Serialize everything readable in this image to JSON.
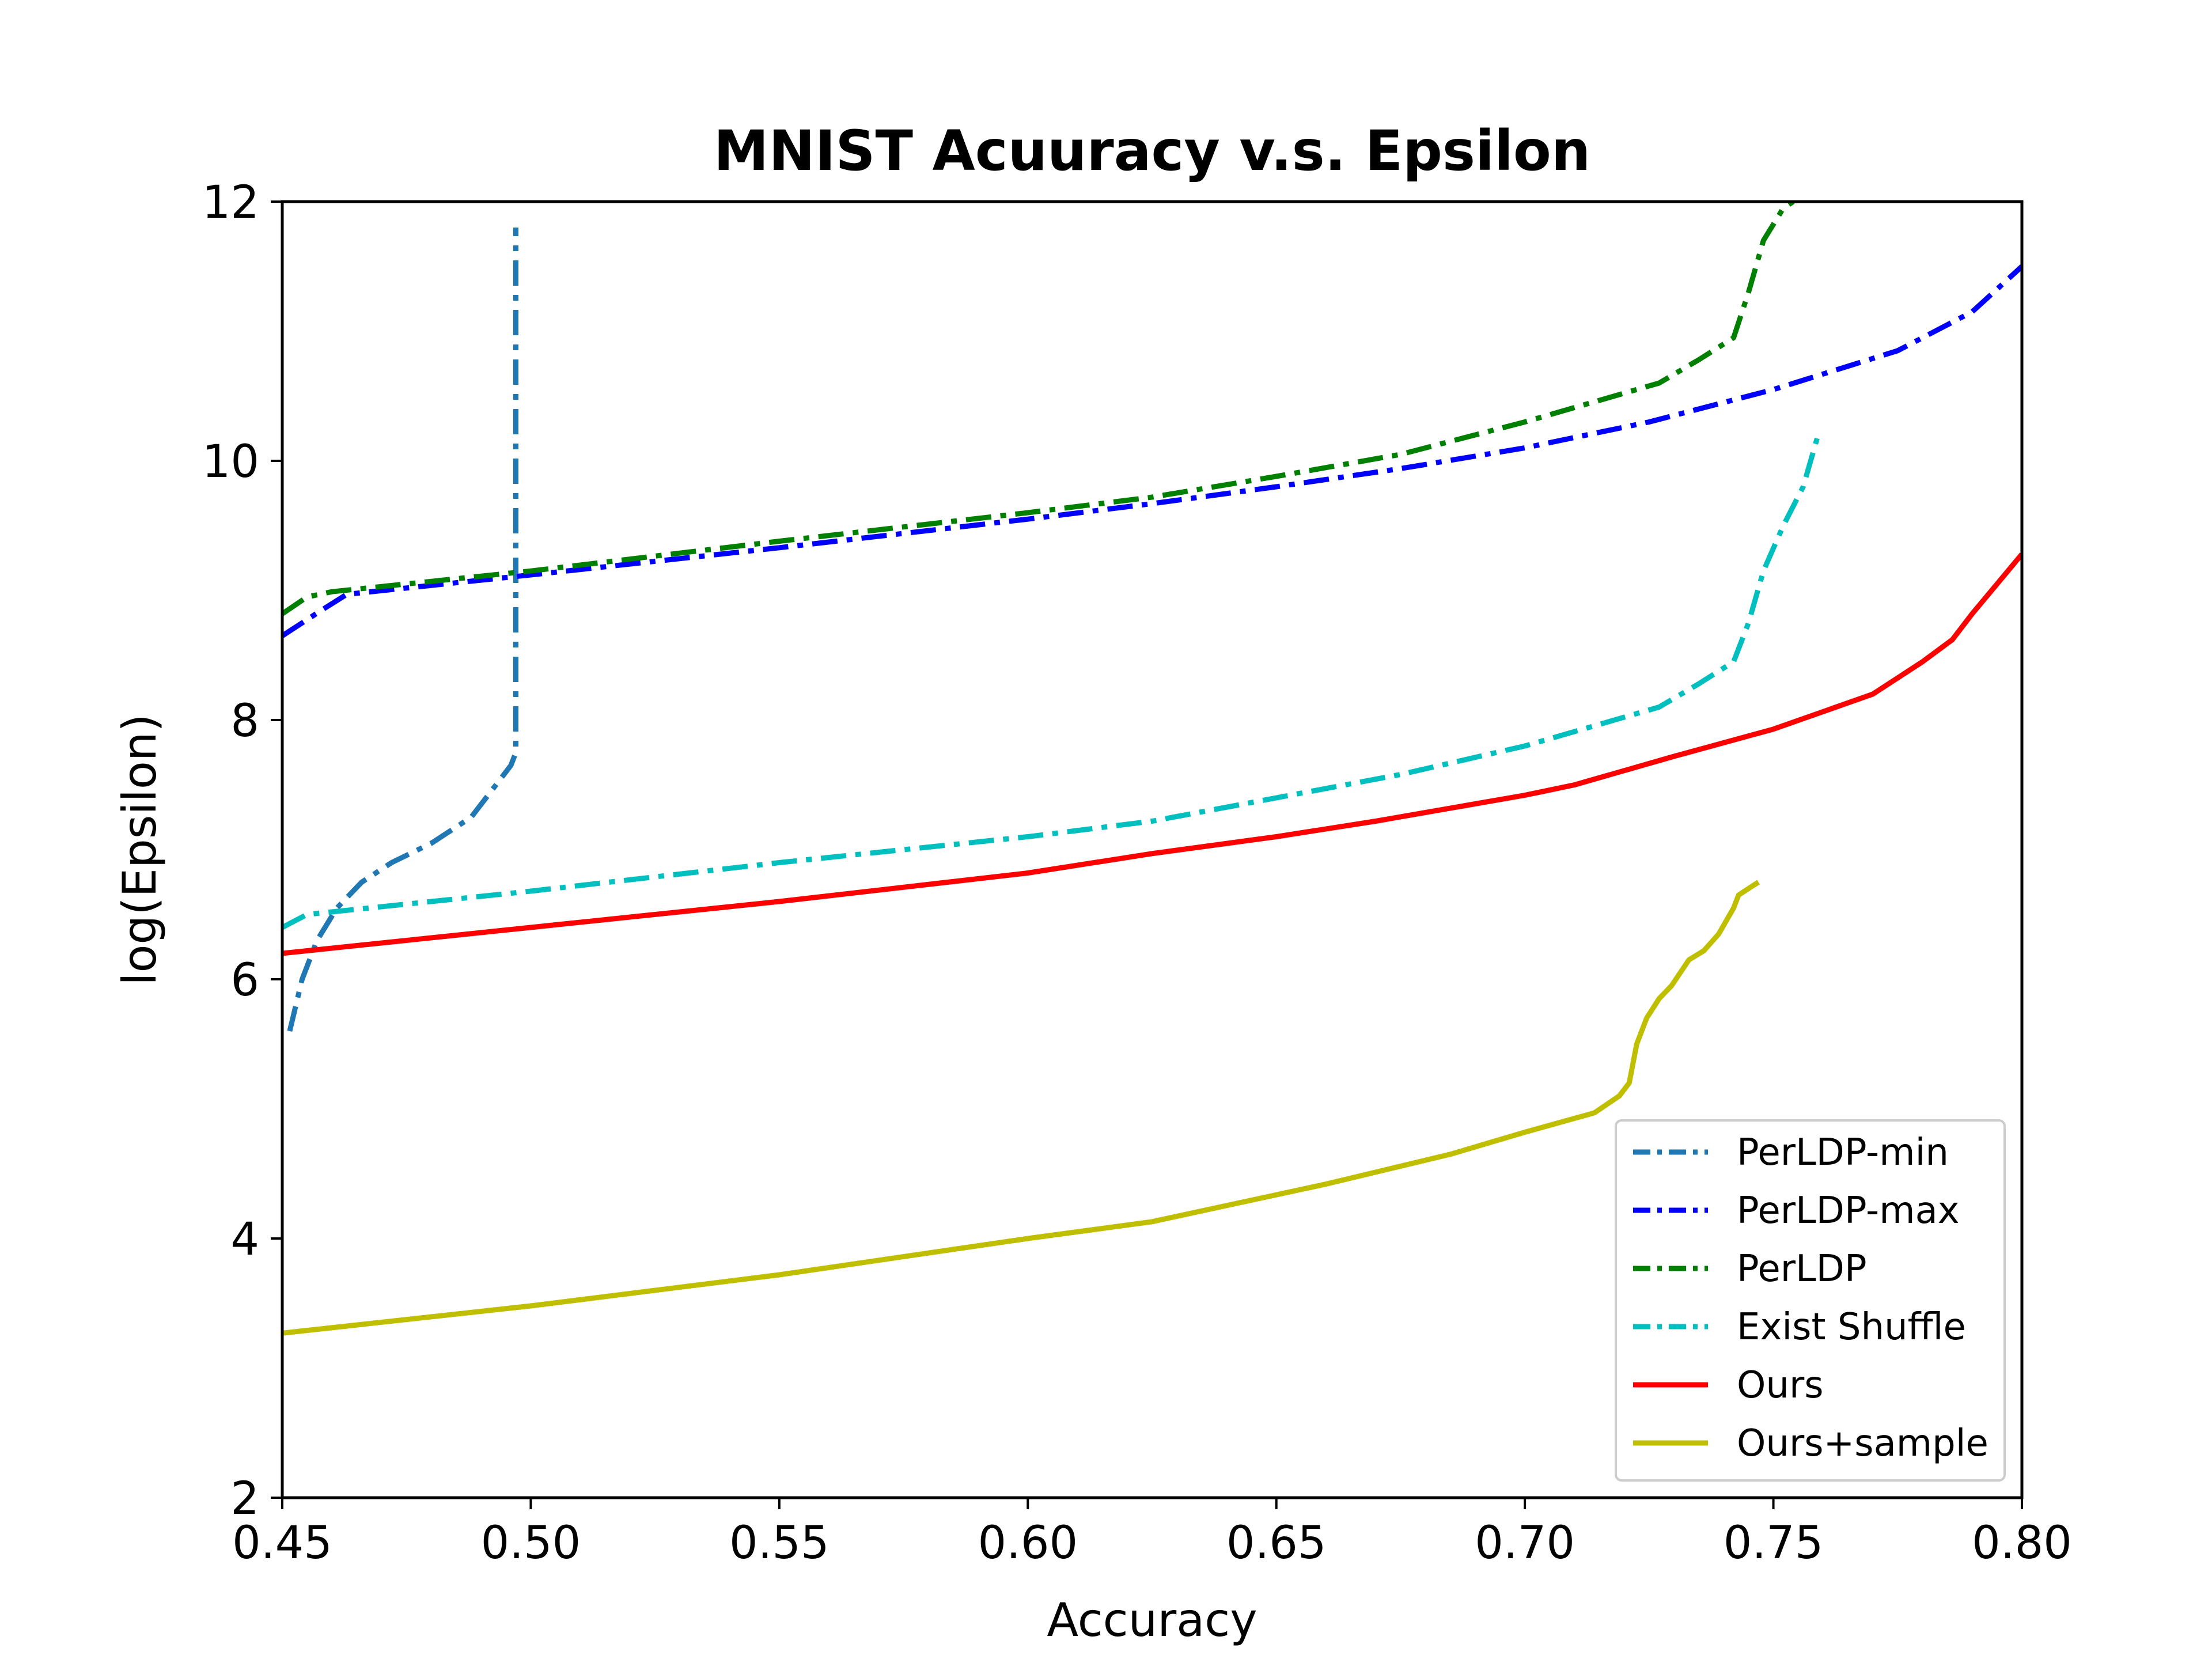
{
  "chart_data": {
    "type": "line",
    "title": "MNIST Acuuracy v.s. Epsilon",
    "xlabel": "Accuracy",
    "ylabel": "log(Epsilon)",
    "xlim": [
      0.45,
      0.8
    ],
    "ylim": [
      2,
      12
    ],
    "x_ticks": [
      "0.45",
      "0.50",
      "0.55",
      "0.60",
      "0.65",
      "0.70",
      "0.75",
      "0.80"
    ],
    "y_ticks": [
      "2",
      "4",
      "6",
      "8",
      "10",
      "12"
    ],
    "grid": false,
    "legend_position": "bottom-right",
    "series": [
      {
        "name": "PerLDP-min",
        "color": "#1f77b4",
        "style": "dashdot",
        "x": [
          0.4515,
          0.454,
          0.457,
          0.461,
          0.466,
          0.472,
          0.48,
          0.488,
          0.492,
          0.495,
          0.496,
          0.497,
          0.497,
          0.497,
          0.497
        ],
        "y": [
          5.6,
          6.0,
          6.3,
          6.55,
          6.75,
          6.9,
          7.05,
          7.25,
          7.45,
          7.6,
          7.65,
          7.75,
          8.0,
          10.0,
          11.8
        ]
      },
      {
        "name": "PerLDP-max",
        "color": "#0000ff",
        "style": "dashdot",
        "x": [
          0.45,
          0.458,
          0.463,
          0.5,
          0.55,
          0.6,
          0.625,
          0.65,
          0.675,
          0.7,
          0.725,
          0.75,
          0.775,
          0.79,
          0.8
        ],
        "y": [
          8.65,
          8.85,
          8.97,
          9.12,
          9.33,
          9.55,
          9.67,
          9.8,
          9.94,
          10.1,
          10.3,
          10.55,
          10.85,
          11.15,
          11.5
        ]
      },
      {
        "name": "PerLDP",
        "color": "#008000",
        "style": "dashdot",
        "x": [
          0.45,
          0.455,
          0.46,
          0.5,
          0.55,
          0.6,
          0.625,
          0.65,
          0.675,
          0.7,
          0.727,
          0.735,
          0.742,
          0.745,
          0.748,
          0.752,
          0.754
        ],
        "y": [
          8.82,
          8.95,
          8.99,
          9.15,
          9.38,
          9.6,
          9.72,
          9.88,
          10.05,
          10.3,
          10.6,
          10.78,
          10.95,
          11.3,
          11.7,
          11.95,
          12.0
        ]
      },
      {
        "name": "Exist Shuffle",
        "color": "#00bfbf",
        "style": "dashdot",
        "x": [
          0.45,
          0.455,
          0.46,
          0.5,
          0.55,
          0.6,
          0.625,
          0.65,
          0.675,
          0.7,
          0.727,
          0.735,
          0.742,
          0.745,
          0.748,
          0.752,
          0.756,
          0.759
        ],
        "y": [
          6.4,
          6.5,
          6.52,
          6.68,
          6.9,
          7.1,
          7.22,
          7.4,
          7.58,
          7.8,
          8.1,
          8.28,
          8.45,
          8.75,
          9.15,
          9.5,
          9.8,
          10.2
        ]
      },
      {
        "name": "Ours",
        "color": "#ff0000",
        "style": "solid",
        "x": [
          0.45,
          0.5,
          0.55,
          0.6,
          0.625,
          0.65,
          0.67,
          0.7,
          0.71,
          0.73,
          0.75,
          0.77,
          0.78,
          0.786,
          0.79,
          0.795,
          0.8
        ],
        "y": [
          6.2,
          6.4,
          6.6,
          6.82,
          6.97,
          7.1,
          7.22,
          7.42,
          7.5,
          7.72,
          7.93,
          8.2,
          8.45,
          8.62,
          8.82,
          9.05,
          9.28
        ]
      },
      {
        "name": "Ours+sample",
        "color": "#bfbf00",
        "style": "solid",
        "x": [
          0.45,
          0.5,
          0.55,
          0.6,
          0.625,
          0.66,
          0.685,
          0.7,
          0.714,
          0.719,
          0.721,
          0.7225,
          0.7245,
          0.727,
          0.7295,
          0.733,
          0.736,
          0.739,
          0.742,
          0.743,
          0.745,
          0.747
        ],
        "y": [
          3.27,
          3.48,
          3.72,
          4.0,
          4.13,
          4.42,
          4.65,
          4.82,
          4.97,
          5.1,
          5.2,
          5.5,
          5.7,
          5.85,
          5.95,
          6.15,
          6.22,
          6.35,
          6.55,
          6.65,
          6.7,
          6.75
        ]
      }
    ]
  }
}
